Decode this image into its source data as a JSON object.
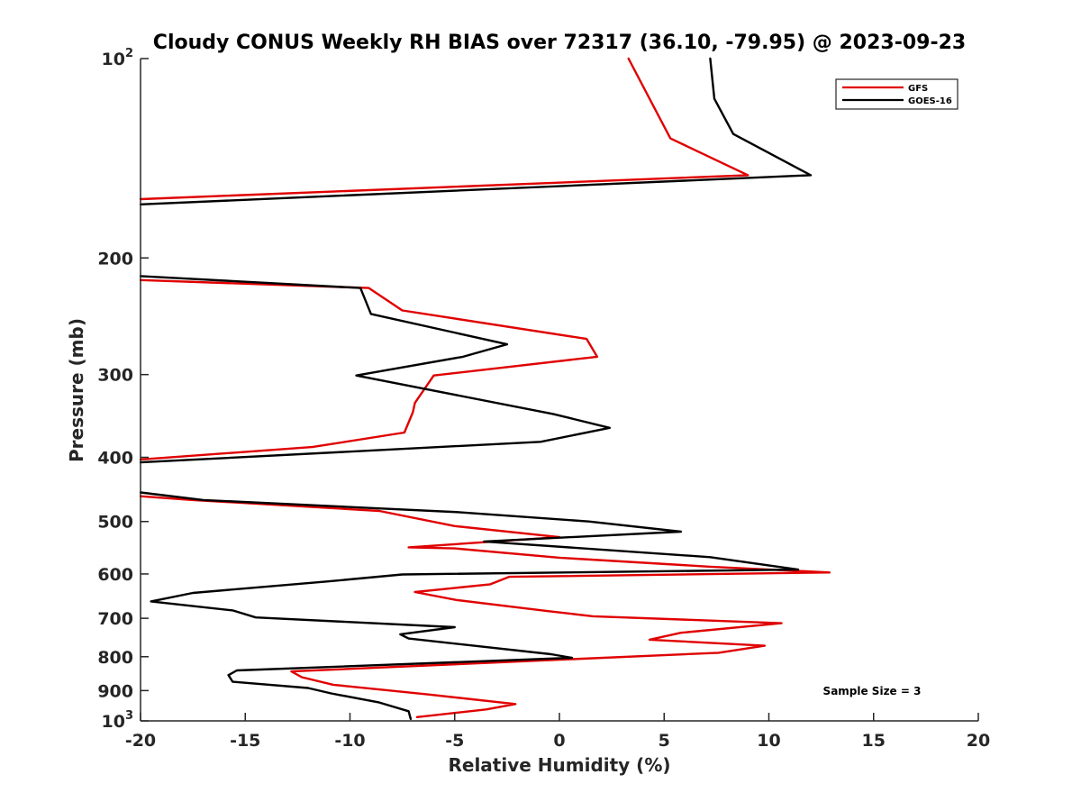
{
  "chart_data": {
    "type": "line",
    "title": "Cloudy CONUS Weekly RH BIAS over 72317 (36.10, -79.95) @ 2023-09-23",
    "xlabel": "Relative Humidity (%)",
    "ylabel": "Pressure (mb)",
    "xlim": [
      -20,
      20
    ],
    "ylim": [
      100,
      1000
    ],
    "y_scale": "log",
    "y_reversed": true,
    "grid": false,
    "legend_position": "top-right",
    "x_ticks": [
      "-20",
      "-15",
      "-10",
      "-5",
      "0",
      "5",
      "10",
      "15",
      "20"
    ],
    "y_ticks": [
      {
        "value": 100,
        "base": "10",
        "exp": "2"
      },
      {
        "value": 200,
        "label": "200"
      },
      {
        "value": 300,
        "label": "300"
      },
      {
        "value": 400,
        "label": "400"
      },
      {
        "value": 500,
        "label": "500"
      },
      {
        "value": 600,
        "label": "600"
      },
      {
        "value": 700,
        "label": "700"
      },
      {
        "value": 800,
        "label": "800"
      },
      {
        "value": 900,
        "label": "900"
      },
      {
        "value": 1000,
        "base": "10",
        "exp": "3"
      }
    ],
    "annotation": "Sample Size = 3",
    "series": [
      {
        "name": "GFS",
        "color": "#e00000",
        "segments": [
          [
            [
              3.3,
              100
            ],
            [
              5.3,
              132
            ],
            [
              9.0,
              150
            ],
            [
              -20,
              163
            ]
          ],
          [
            [
              -20,
              216
            ],
            [
              -9.1,
              222
            ],
            [
              -7.5,
              240
            ],
            [
              1.3,
              265
            ],
            [
              1.8,
              282
            ],
            [
              -6.0,
              301
            ],
            [
              -6.9,
              331
            ],
            [
              -7.0,
              342
            ],
            [
              -7.4,
              367
            ],
            [
              -11.8,
              386
            ],
            [
              -20,
              403
            ]
          ],
          [
            [
              -20,
              458
            ],
            [
              -17.5,
              464
            ],
            [
              -8.6,
              482
            ],
            [
              -5.0,
              508
            ],
            [
              0.0,
              528
            ],
            [
              -7.2,
              547
            ],
            [
              -5.0,
              549
            ],
            [
              0.0,
              567
            ],
            [
              7.2,
              585
            ],
            [
              12.9,
              597
            ],
            [
              -2.4,
              606
            ],
            [
              -3.3,
              622
            ],
            [
              -6.9,
              639
            ],
            [
              -4.9,
              657
            ],
            [
              -0.5,
              683
            ],
            [
              1.6,
              695
            ],
            [
              10.6,
              712
            ],
            [
              5.8,
              736
            ],
            [
              4.3,
              754
            ],
            [
              9.8,
              770
            ],
            [
              7.6,
              789
            ],
            [
              -12.8,
              842
            ],
            [
              -12.3,
              859
            ],
            [
              -10.8,
              882
            ],
            [
              -6.3,
              912
            ],
            [
              -2.1,
              943
            ],
            [
              -3.5,
              961
            ],
            [
              -6.8,
              987
            ]
          ]
        ]
      },
      {
        "name": "GOES-16",
        "color": "#000000",
        "segments": [
          [
            [
              7.2,
              100
            ],
            [
              7.4,
              115
            ],
            [
              8.3,
              130
            ],
            [
              12.0,
              150
            ],
            [
              -20,
              166
            ]
          ],
          [
            [
              -20,
              213
            ],
            [
              -9.5,
              222
            ],
            [
              -9.0,
              243
            ],
            [
              -2.5,
              270
            ],
            [
              -4.6,
              282
            ],
            [
              -9.7,
              301
            ],
            [
              -0.3,
              344
            ],
            [
              2.4,
              361
            ],
            [
              -0.9,
              379
            ],
            [
              -20,
              407
            ]
          ],
          [
            [
              -20,
              452
            ],
            [
              -17.0,
              464
            ],
            [
              -4.8,
              484
            ],
            [
              1.4,
              500
            ],
            [
              5.8,
              518
            ],
            [
              -3.6,
              536
            ],
            [
              7.2,
              566
            ],
            [
              11.4,
              591
            ],
            [
              -7.5,
              601
            ],
            [
              -11.1,
              616
            ],
            [
              -17.5,
              641
            ],
            [
              -19.5,
              660
            ],
            [
              -15.6,
              681
            ],
            [
              -14.5,
              698
            ],
            [
              -5.0,
              722
            ],
            [
              -7.6,
              740
            ],
            [
              -7.2,
              751
            ],
            [
              -0.4,
              793
            ],
            [
              0.6,
              803
            ],
            [
              -15.4,
              839
            ],
            [
              -15.8,
              853
            ],
            [
              -15.6,
              873
            ],
            [
              -12.0,
              892
            ],
            [
              -10.9,
              909
            ],
            [
              -8.6,
              938
            ],
            [
              -7.2,
              967
            ],
            [
              -7.1,
              993
            ]
          ]
        ]
      }
    ]
  }
}
